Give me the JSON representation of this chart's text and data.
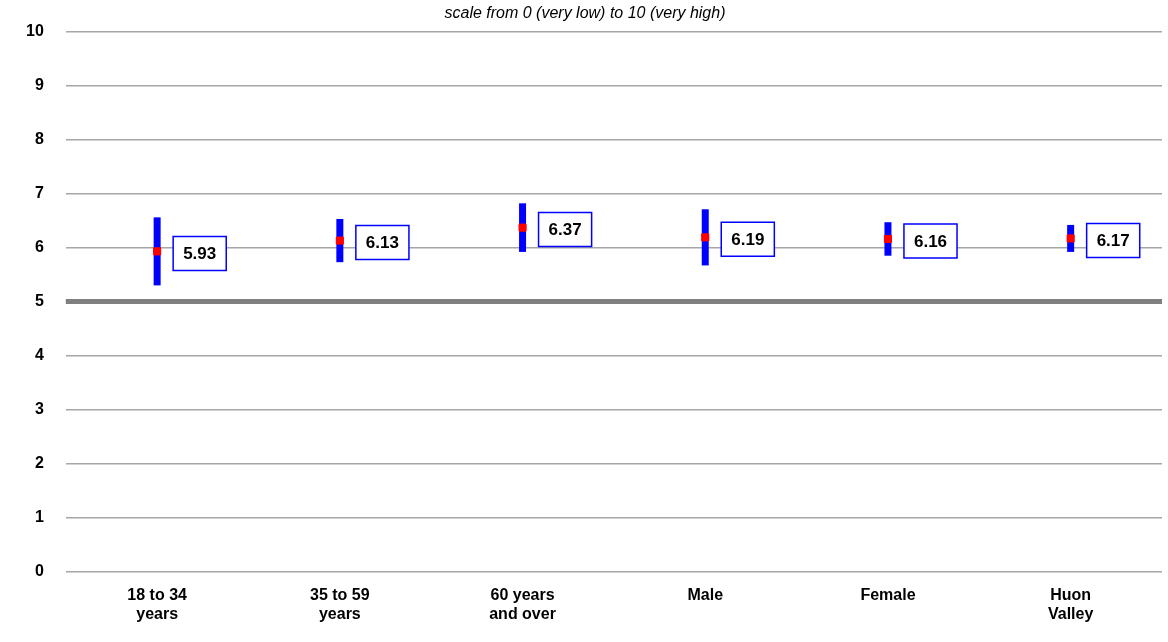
{
  "chart_data": {
    "type": "scatter",
    "subtitle": "scale from 0 (very low) to 10 (very high)",
    "categories": [
      "18 to 34 years",
      "35 to 59 years",
      "60 years and over",
      "Male",
      "Female",
      "Huon Valley"
    ],
    "series": [
      {
        "color": "#ff0000",
        "values": [
          5.93,
          6.13,
          6.37,
          6.19,
          6.16,
          6.17
        ],
        "errors": [
          0.63,
          0.4,
          0.45,
          0.52,
          0.31,
          0.25
        ]
      }
    ],
    "data_labels": true,
    "marker": "square",
    "grid": "y",
    "legend": false,
    "ylim": [
      0,
      10
    ],
    "yticks": [
      0,
      1,
      2,
      3,
      4,
      5,
      6,
      7,
      8,
      9,
      10
    ],
    "ref_lines": [
      {
        "axis": "y",
        "value": 5,
        "color": "#808080"
      }
    ]
  }
}
